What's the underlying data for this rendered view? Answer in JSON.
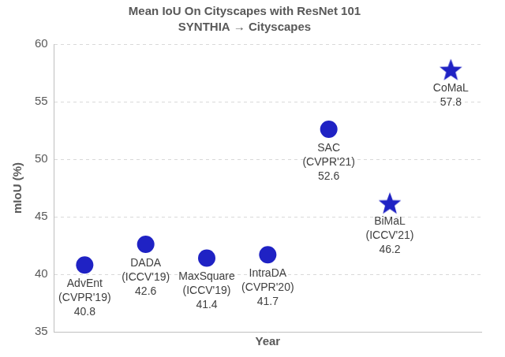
{
  "chart_data": {
    "type": "scatter",
    "title": "Mean IoU On Cityscapes with ResNet 101",
    "subtitle": "SYNTHIA → Cityscapes",
    "x_label": "Year",
    "y_label": "mIoU (%)",
    "categories": [
      "AdvEnt",
      "DADA",
      "MaxSquare",
      "IntraDA",
      "SAC",
      "BiMaL",
      "CoMaL"
    ],
    "venues": [
      "(CVPR'19)",
      "(ICCV'19)",
      "(ICCV'19)",
      "(CVPR'20)",
      "(CVPR'21)",
      "(ICCV'21)",
      null
    ],
    "series": [
      {
        "values": [
          40.8,
          42.6,
          41.4,
          41.7,
          52.6,
          null,
          null
        ],
        "marker": "circle",
        "color": "#1f22c4"
      },
      {
        "values": [
          null,
          null,
          null,
          null,
          null,
          46.2,
          57.8
        ],
        "marker": "star",
        "color": "#1f22c4"
      }
    ],
    "ylim": [
      35,
      60
    ],
    "yticks": [
      35,
      40,
      45,
      50,
      55,
      60
    ],
    "grid": true,
    "data_labels": true,
    "tick_labels": "y"
  }
}
